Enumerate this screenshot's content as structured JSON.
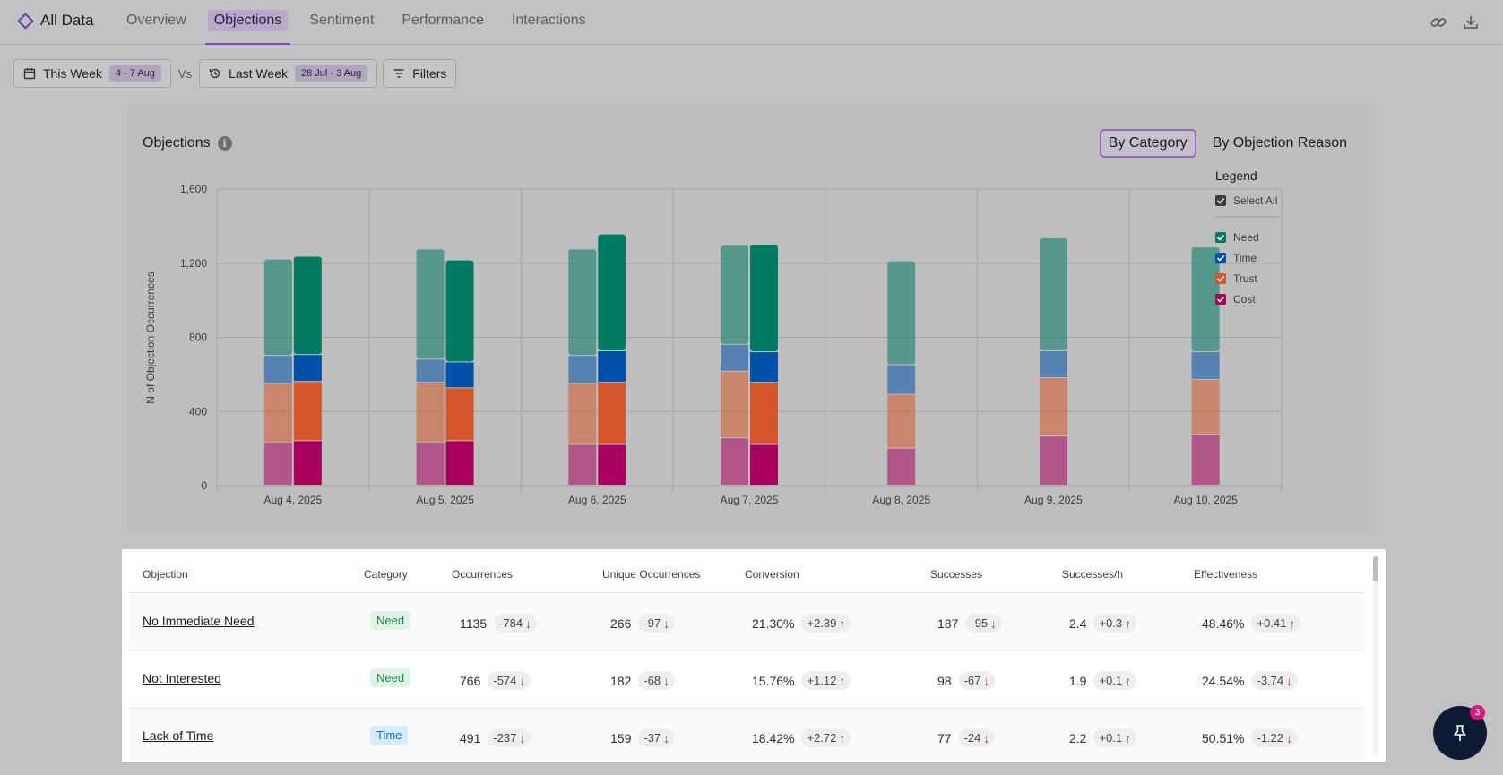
{
  "brand": {
    "title": "All Data"
  },
  "tabs": [
    {
      "label": "Overview"
    },
    {
      "label": "Objections"
    },
    {
      "label": "Sentiment"
    },
    {
      "label": "Performance"
    },
    {
      "label": "Interactions"
    }
  ],
  "active_tab": "Objections",
  "toolbar": {
    "current": {
      "label": "This Week",
      "range": "4 - 7 Aug"
    },
    "vs_label": "Vs",
    "previous": {
      "label": "Last Week",
      "range": "28 Jul - 3 Aug"
    },
    "filters_label": "Filters"
  },
  "chart_card": {
    "title": "Objections",
    "toggle": [
      {
        "label": "By Category",
        "active": true
      },
      {
        "label": "By Objection Reason",
        "active": false
      }
    ]
  },
  "chart_data": {
    "type": "bar",
    "stacked": true,
    "grouped": true,
    "ylabel": "N of Objection Occurrences",
    "ylim": [
      0,
      1600
    ],
    "yticks": [
      "0",
      "400",
      "800",
      "1,200",
      "1,600"
    ],
    "categories": [
      "Aug 4, 2025",
      "Aug 5, 2025",
      "Aug 6, 2025",
      "Aug 7, 2025",
      "Aug 8, 2025",
      "Aug 9, 2025",
      "Aug 10, 2025"
    ],
    "groups": [
      "previous",
      "current"
    ],
    "series": [
      {
        "name": "Cost",
        "color": "#a8005f",
        "previous": [
          230,
          230,
          220,
          255,
          200,
          265,
          275
        ],
        "current": [
          240,
          240,
          220,
          220,
          null,
          null,
          null
        ]
      },
      {
        "name": "Trust",
        "color": "#d4562a",
        "previous": [
          320,
          325,
          330,
          360,
          290,
          315,
          295
        ],
        "current": [
          320,
          285,
          335,
          335,
          null,
          null,
          null
        ]
      },
      {
        "name": "Time",
        "color": "#0051a8",
        "previous": [
          150,
          125,
          150,
          145,
          160,
          145,
          150
        ],
        "current": [
          145,
          140,
          170,
          165,
          null,
          null,
          null
        ]
      },
      {
        "name": "Need",
        "color": "#007a62",
        "previous": [
          520,
          595,
          575,
          535,
          560,
          610,
          565
        ],
        "current": [
          530,
          550,
          630,
          580,
          null,
          null,
          null
        ]
      }
    ],
    "legend": {
      "title": "Legend",
      "select_all": "Select All",
      "position": "right",
      "items": [
        "Need",
        "Time",
        "Trust",
        "Cost"
      ]
    },
    "grid": true
  },
  "table": {
    "headers": [
      "Objection",
      "Category",
      "Occurrences",
      "Unique Occurrences",
      "Conversion",
      "Successes",
      "Successes/h",
      "Effectiveness"
    ],
    "rows": [
      {
        "objection": "No Immediate Need",
        "category": "Need",
        "occurrences": "1135",
        "occ_delta": "-784",
        "occ_dir": "down-good",
        "unique": "266",
        "unique_delta": "-97",
        "unique_dir": "down-good",
        "conversion": "21.30%",
        "conv_delta": "+2.39",
        "conv_dir": "up-good",
        "successes": "187",
        "succ_delta": "-95",
        "succ_dir": "down-bad",
        "sph": "2.4",
        "sph_delta": "+0.3",
        "sph_dir": "up-good",
        "effectiveness": "48.46%",
        "eff_delta": "+0.41",
        "eff_dir": "up-good"
      },
      {
        "objection": "Not Interested",
        "category": "Need",
        "occurrences": "766",
        "occ_delta": "-574",
        "occ_dir": "down-good",
        "unique": "182",
        "unique_delta": "-68",
        "unique_dir": "down-good",
        "conversion": "15.76%",
        "conv_delta": "+1.12",
        "conv_dir": "up-good",
        "successes": "98",
        "succ_delta": "-67",
        "succ_dir": "down-bad",
        "sph": "1.9",
        "sph_delta": "+0.1",
        "sph_dir": "up-good",
        "effectiveness": "24.54%",
        "eff_delta": "-3.74",
        "eff_dir": "down-bad"
      },
      {
        "objection": "Lack of Time",
        "category": "Time",
        "occurrences": "491",
        "occ_delta": "-237",
        "occ_dir": "down-good",
        "unique": "159",
        "unique_delta": "-37",
        "unique_dir": "down-good",
        "conversion": "18.42%",
        "conv_delta": "+2.72",
        "conv_dir": "up-good",
        "successes": "77",
        "succ_delta": "-24",
        "succ_dir": "down-bad",
        "sph": "2.2",
        "sph_delta": "+0.1",
        "sph_dir": "up-good",
        "effectiveness": "50.51%",
        "eff_delta": "-1.22",
        "eff_dir": "down-bad"
      }
    ]
  },
  "pin": {
    "badge": "3"
  },
  "colors": {
    "accent": "#7b4cb0",
    "fab": "#0e1a33",
    "badge": "#d01d7a"
  },
  "icons": [
    "diamond-icon",
    "link-icon",
    "download-icon",
    "calendar-icon",
    "history-icon",
    "filter-icon",
    "info-icon",
    "pin-icon"
  ]
}
